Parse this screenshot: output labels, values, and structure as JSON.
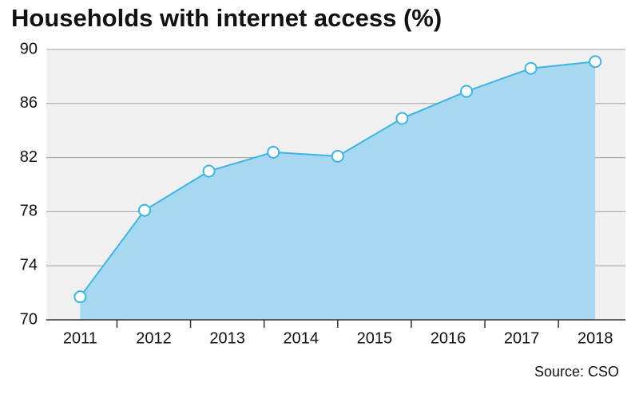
{
  "chart_data": {
    "type": "area",
    "title": "Households with internet access (%)",
    "source": "Source: CSO",
    "x": [
      2011,
      2011.875,
      2012.75,
      2013.625,
      2014.5,
      2015.375,
      2016.25,
      2017.125,
      2018
    ],
    "values": [
      71.7,
      78.1,
      81.0,
      82.4,
      82.1,
      84.9,
      86.9,
      88.6,
      89.1
    ],
    "color": "#3bb5e5",
    "fill": "#a8d8ef",
    "xlim": [
      2010.54,
      2018.41
    ],
    "xticks": [
      2011,
      2012,
      2013,
      2014,
      2015,
      2016,
      2017,
      2018
    ],
    "ylim": [
      70,
      90
    ],
    "yticks": [
      70,
      74,
      78,
      82,
      86,
      90
    ],
    "grid": true
  }
}
